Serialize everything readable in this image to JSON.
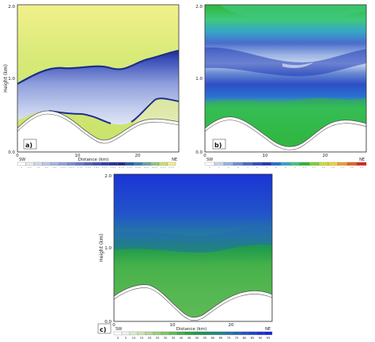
{
  "chart_data": [
    {
      "type": "heatmap",
      "panel_label": "a)",
      "ylabel": "Height (km)",
      "xlabel": "Distance (km)",
      "x_ticks": [
        "0",
        "10",
        "20"
      ],
      "y_ticks": [
        "0.0",
        "1.0",
        "2.0"
      ],
      "ylim": [
        0,
        2.0
      ],
      "direction_left": "SW",
      "direction_right": "NE",
      "colorbar": {
        "labels": [
          "0",
          "20",
          "40",
          "60",
          "80",
          "100",
          "120",
          "140",
          "160",
          "180",
          "200",
          "220",
          "240",
          "260",
          "280",
          "300",
          "320",
          "340",
          "360"
        ],
        "unit": "degrees",
        "colors": [
          "#ffffff",
          "#e6ecf5",
          "#d2daf0",
          "#bcc8ea",
          "#a6b5e4",
          "#90a1de",
          "#7b8dd6",
          "#6878cc",
          "#5563c2",
          "#4450b5",
          "#3340a8",
          "#26349a",
          "#1e2e8e",
          "#2a5aa8",
          "#3d82b0",
          "#5fa8a0",
          "#8fc880",
          "#c8e26a",
          "#f2f08c"
        ]
      }
    },
    {
      "type": "heatmap",
      "panel_label": "b)",
      "x_ticks": [
        "0",
        "10",
        "20"
      ],
      "y_ticks": [
        "0.0",
        "1.0",
        "2.0"
      ],
      "ylim": [
        0,
        2.0
      ],
      "direction_left": "SW",
      "direction_right": "NE",
      "colorbar": {
        "labels": [
          "0",
          "1",
          "2",
          "3",
          "4",
          "5",
          "6",
          "7",
          "8",
          "9",
          "10",
          "11",
          "12",
          "13",
          "14",
          "15",
          "16"
        ],
        "unit": "m s⁻¹",
        "colors": [
          "#ffffff",
          "#c8d6ee",
          "#9ab3e2",
          "#6e8fd4",
          "#4a6ccc",
          "#2e4fc4",
          "#1f3bb8",
          "#2b6fd0",
          "#35a7c8",
          "#3fc87a",
          "#2fb63c",
          "#7ed23a",
          "#c8e03a",
          "#f0d232",
          "#f0a02a",
          "#e86424",
          "#d8281e"
        ]
      }
    },
    {
      "type": "heatmap",
      "panel_label": "c)",
      "ylabel": "Height (km)",
      "xlabel": "Distance (km)",
      "x_ticks": [
        "0",
        "10",
        "20"
      ],
      "y_ticks": [
        "0.0",
        "1.0",
        "2.0"
      ],
      "ylim": [
        0,
        2.0
      ],
      "direction_left": "SW",
      "direction_right": "NE",
      "colorbar": {
        "labels": [
          "0",
          "5",
          "10",
          "15",
          "20",
          "25",
          "30",
          "35",
          "40",
          "45",
          "50",
          "55",
          "60",
          "65",
          "70",
          "75",
          "80",
          "85",
          "90",
          "95"
        ],
        "colors": [
          "#ffffff",
          "#eef6ea",
          "#dceecf",
          "#c8e6b4",
          "#b0dc98",
          "#98d27e",
          "#7ec868",
          "#62bc56",
          "#46b04a",
          "#2ea444",
          "#1f9b4c",
          "#1c9460",
          "#1f8c78",
          "#22848e",
          "#2478a4",
          "#2468b8",
          "#2256c8",
          "#1e44d0",
          "#1a34d6",
          "#1628d8"
        ]
      }
    }
  ]
}
